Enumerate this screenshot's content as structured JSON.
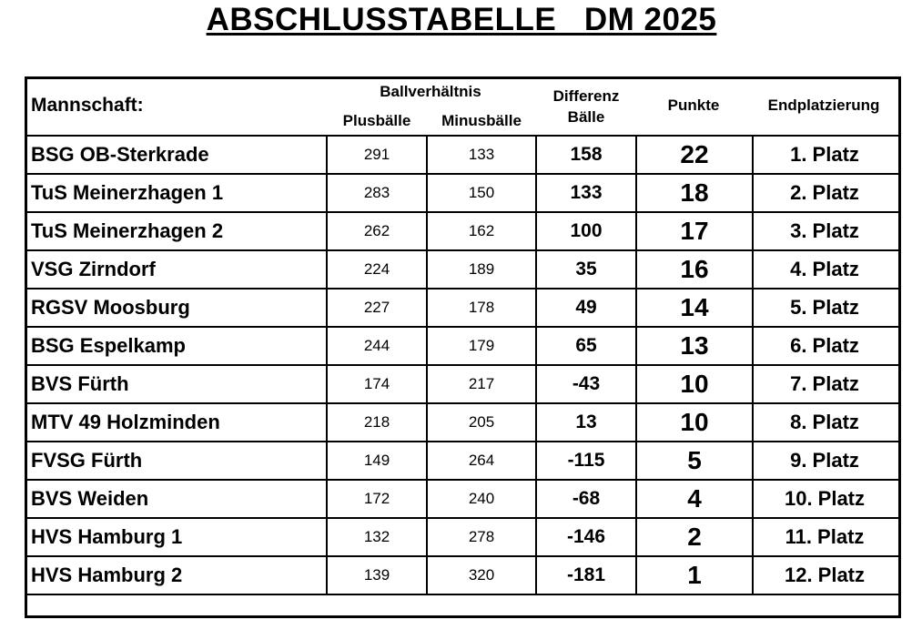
{
  "title": "ABSCHLUSSTABELLE   DM 2025",
  "header": {
    "team": "Mannschaft:",
    "ball_ratio": "Ballverhältnis",
    "plus": "Plusbälle",
    "minus": "Minusbälle",
    "diff_line1": "Differenz",
    "diff_line2": "Bälle",
    "points": "Punkte",
    "placement": "Endplatzierung"
  },
  "rows": [
    {
      "team": "BSG OB-Sterkrade",
      "plus": "291",
      "minus": "133",
      "diff": "158",
      "points": "22",
      "place": "1. Platz"
    },
    {
      "team": "TuS Meinerzhagen 1",
      "plus": "283",
      "minus": "150",
      "diff": "133",
      "points": "18",
      "place": "2. Platz"
    },
    {
      "team": "TuS Meinerzhagen 2",
      "plus": "262",
      "minus": "162",
      "diff": "100",
      "points": "17",
      "place": "3. Platz"
    },
    {
      "team": "VSG Zirndorf",
      "plus": "224",
      "minus": "189",
      "diff": "35",
      "points": "16",
      "place": "4. Platz"
    },
    {
      "team": "RGSV Moosburg",
      "plus": "227",
      "minus": "178",
      "diff": "49",
      "points": "14",
      "place": "5. Platz"
    },
    {
      "team": "BSG Espelkamp",
      "plus": "244",
      "minus": "179",
      "diff": "65",
      "points": "13",
      "place": "6. Platz"
    },
    {
      "team": "BVS Fürth",
      "plus": "174",
      "minus": "217",
      "diff": "-43",
      "points": "10",
      "place": "7. Platz"
    },
    {
      "team": "MTV 49 Holzminden",
      "plus": "218",
      "minus": "205",
      "diff": "13",
      "points": "10",
      "place": "8. Platz"
    },
    {
      "team": "FVSG Fürth",
      "plus": "149",
      "minus": "264",
      "diff": "-115",
      "points": "5",
      "place": "9. Platz"
    },
    {
      "team": "BVS Weiden",
      "plus": "172",
      "minus": "240",
      "diff": "-68",
      "points": "4",
      "place": "10. Platz"
    },
    {
      "team": "HVS Hamburg 1",
      "plus": "132",
      "minus": "278",
      "diff": "-146",
      "points": "2",
      "place": "11. Platz"
    },
    {
      "team": "HVS Hamburg 2",
      "plus": "139",
      "minus": "320",
      "diff": "-181",
      "points": "1",
      "place": "12. Platz"
    }
  ]
}
